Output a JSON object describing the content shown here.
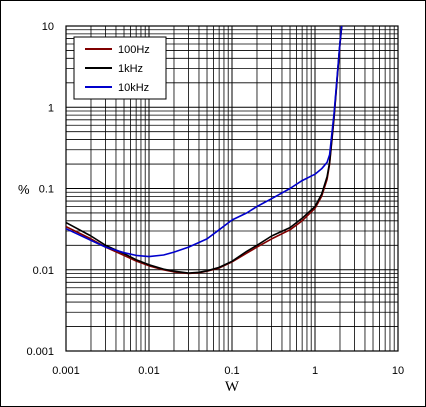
{
  "chart_data": {
    "type": "line",
    "xscale": "log",
    "yscale": "log",
    "xlim": [
      0.001,
      10
    ],
    "ylim": [
      0.001,
      10
    ],
    "xlabel": "W",
    "ylabel": "%",
    "grid": true,
    "legend_position": "top-left",
    "xticks": [
      "0.001",
      "0.01",
      "0.1",
      "1",
      "10"
    ],
    "yticks": [
      "0.001",
      "0.01",
      "0.1",
      "1",
      "10"
    ],
    "series": [
      {
        "name": "100Hz",
        "color": "#800000",
        "points": [
          [
            0.001,
            0.034
          ],
          [
            0.002,
            0.024
          ],
          [
            0.003,
            0.019
          ],
          [
            0.005,
            0.015
          ],
          [
            0.007,
            0.0128
          ],
          [
            0.01,
            0.0112
          ],
          [
            0.015,
            0.01
          ],
          [
            0.02,
            0.0094
          ],
          [
            0.03,
            0.009
          ],
          [
            0.04,
            0.0092
          ],
          [
            0.05,
            0.0096
          ],
          [
            0.07,
            0.0105
          ],
          [
            0.1,
            0.0125
          ],
          [
            0.15,
            0.016
          ],
          [
            0.2,
            0.019
          ],
          [
            0.3,
            0.024
          ],
          [
            0.5,
            0.031
          ],
          [
            0.7,
            0.04
          ],
          [
            1.0,
            0.057
          ],
          [
            1.2,
            0.08
          ],
          [
            1.4,
            0.13
          ],
          [
            1.5,
            0.2
          ],
          [
            1.7,
            0.75
          ],
          [
            2.0,
            6.0
          ],
          [
            2.1,
            10.0
          ]
        ]
      },
      {
        "name": "1kHz",
        "color": "#000000",
        "points": [
          [
            0.001,
            0.038
          ],
          [
            0.002,
            0.026
          ],
          [
            0.003,
            0.02
          ],
          [
            0.005,
            0.0158
          ],
          [
            0.007,
            0.0133
          ],
          [
            0.01,
            0.0115
          ],
          [
            0.015,
            0.0102
          ],
          [
            0.02,
            0.0096
          ],
          [
            0.03,
            0.0091
          ],
          [
            0.04,
            0.0093
          ],
          [
            0.05,
            0.0097
          ],
          [
            0.07,
            0.0107
          ],
          [
            0.1,
            0.0127
          ],
          [
            0.15,
            0.0168
          ],
          [
            0.2,
            0.02
          ],
          [
            0.3,
            0.026
          ],
          [
            0.5,
            0.033
          ],
          [
            0.7,
            0.043
          ],
          [
            1.0,
            0.06
          ],
          [
            1.2,
            0.085
          ],
          [
            1.4,
            0.14
          ],
          [
            1.5,
            0.21
          ],
          [
            1.7,
            0.78
          ],
          [
            2.0,
            6.2
          ],
          [
            2.1,
            10.0
          ]
        ]
      },
      {
        "name": "10kHz",
        "color": "#0000cc",
        "points": [
          [
            0.001,
            0.032
          ],
          [
            0.002,
            0.023
          ],
          [
            0.003,
            0.019
          ],
          [
            0.005,
            0.0162
          ],
          [
            0.007,
            0.015
          ],
          [
            0.01,
            0.0145
          ],
          [
            0.015,
            0.0152
          ],
          [
            0.02,
            0.0165
          ],
          [
            0.03,
            0.019
          ],
          [
            0.05,
            0.024
          ],
          [
            0.07,
            0.031
          ],
          [
            0.1,
            0.041
          ],
          [
            0.15,
            0.05
          ],
          [
            0.2,
            0.06
          ],
          [
            0.3,
            0.075
          ],
          [
            0.5,
            0.1
          ],
          [
            0.7,
            0.125
          ],
          [
            1.0,
            0.15
          ],
          [
            1.2,
            0.175
          ],
          [
            1.4,
            0.21
          ],
          [
            1.5,
            0.26
          ],
          [
            1.7,
            0.85
          ],
          [
            2.0,
            6.3
          ],
          [
            2.1,
            10.0
          ]
        ]
      }
    ]
  }
}
